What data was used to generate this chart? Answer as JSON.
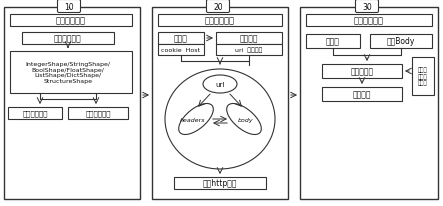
{
  "block1": {
    "label": "10",
    "title": "接口数据解析",
    "box1": "数据模型定义",
    "box2": "IntegerShape/StringShape/\nBoolShape/FloatShape/\nListShape/DictShape/\nStructureShape",
    "box3a": "入参数据模型",
    "box3b": "出参数据模型"
  },
  "block2": {
    "label": "20",
    "title": "接口遍历调用",
    "row1a": "接口类",
    "row1b": "测试接口",
    "row2a": "cookie  Host",
    "row2b": "uri  数据模型",
    "url": "url",
    "ellipse1": "headers",
    "ellipse2": "body",
    "bottom": "发送http请求"
  },
  "block3": {
    "label": "30",
    "title": "权限校验模块",
    "box1a": "状态码",
    "box1b": "响应Body",
    "box2": "预期响应值",
    "box3": "测试结果",
    "side": "当前配\n置的权\n限策略"
  }
}
